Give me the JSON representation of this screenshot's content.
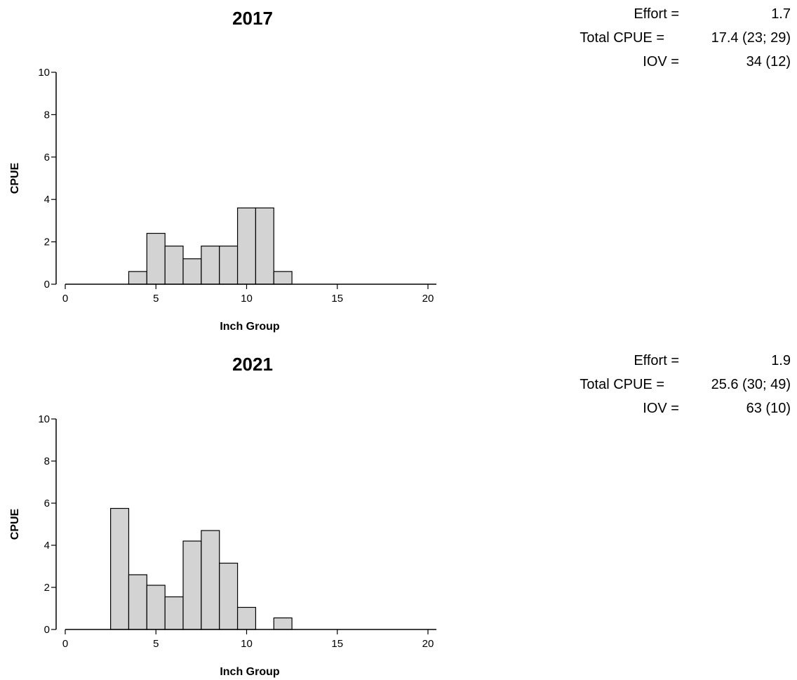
{
  "chart_data": [
    {
      "type": "bar",
      "title": "2017",
      "xlabel": "Inch Group",
      "ylabel": "CPUE",
      "xlim": [
        0,
        20
      ],
      "ylim": [
        0,
        10
      ],
      "xticks": [
        "0",
        "5",
        "10",
        "15",
        "20"
      ],
      "yticks": [
        "0",
        "2",
        "4",
        "6",
        "8",
        "10"
      ],
      "categories": [
        4,
        5,
        6,
        7,
        8,
        9,
        10,
        11,
        12
      ],
      "values": [
        0.6,
        2.4,
        1.8,
        1.2,
        1.8,
        1.8,
        3.6,
        3.6,
        0.6
      ],
      "grid": false,
      "bar_color": "#d3d3d3",
      "stats": {
        "effort_label": "Effort =",
        "effort_value": "1.7",
        "cpue_label": "Total CPUE =",
        "cpue_value": "17.4 (23; 29)",
        "iov_label": "IOV =",
        "iov_value": "34 (12)"
      }
    },
    {
      "type": "bar",
      "title": "2021",
      "xlabel": "Inch Group",
      "ylabel": "CPUE",
      "xlim": [
        0,
        20
      ],
      "ylim": [
        0,
        10
      ],
      "xticks": [
        "0",
        "5",
        "10",
        "15",
        "20"
      ],
      "yticks": [
        "0",
        "2",
        "4",
        "6",
        "8",
        "10"
      ],
      "categories": [
        3,
        4,
        5,
        6,
        7,
        8,
        9,
        10,
        12
      ],
      "values": [
        5.75,
        2.6,
        2.1,
        1.55,
        4.2,
        4.7,
        3.15,
        1.05,
        0.55
      ],
      "grid": false,
      "bar_color": "#d3d3d3",
      "stats": {
        "effort_label": "Effort =",
        "effort_value": "1.9",
        "cpue_label": "Total CPUE =",
        "cpue_value": "25.6 (30; 49)",
        "iov_label": "IOV =",
        "iov_value": "63 (10)"
      }
    }
  ]
}
